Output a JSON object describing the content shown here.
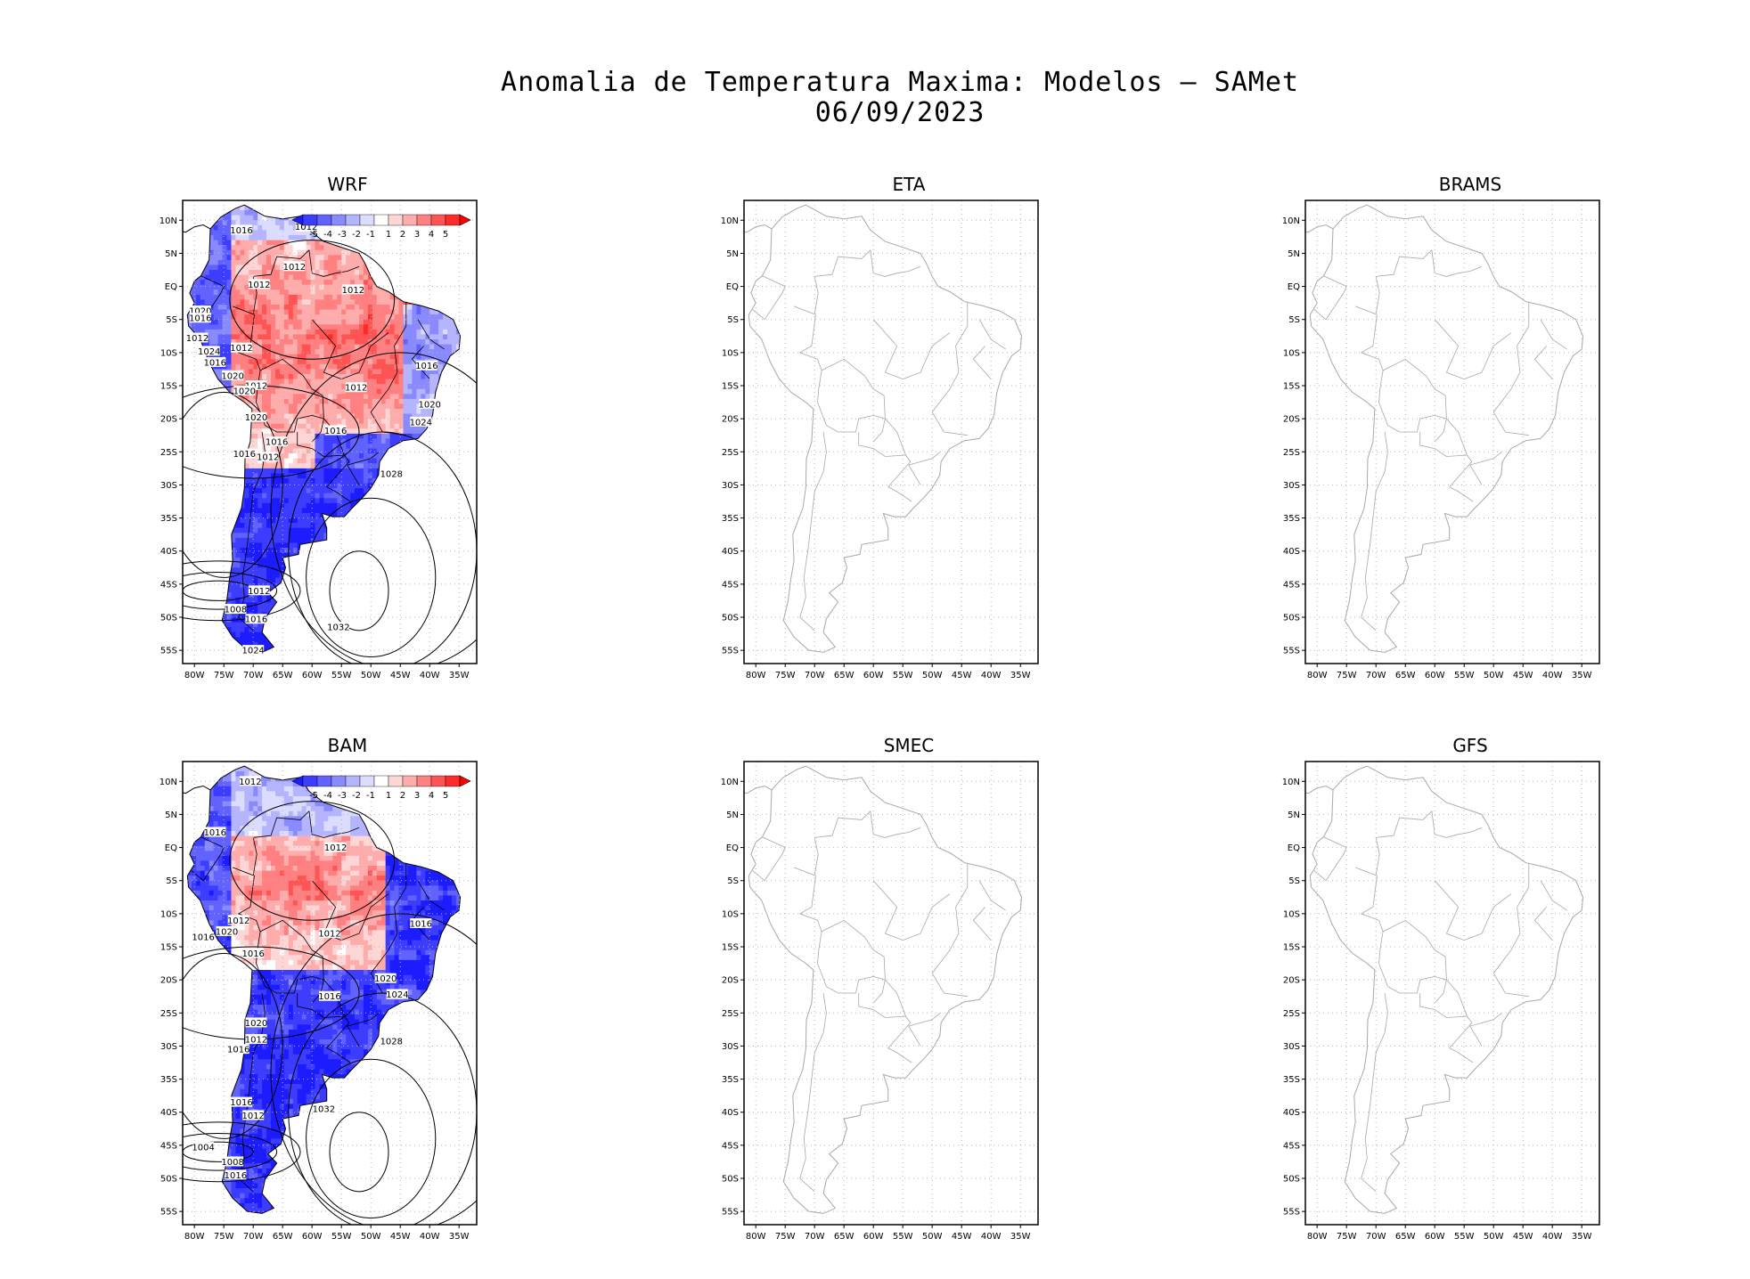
{
  "title": {
    "line1": "Anomalia de Temperatura Maxima: Modelos — SAMet",
    "line2": "06/09/2023"
  },
  "axes": {
    "lat_labels": [
      "10N",
      "5N",
      "EQ",
      "5S",
      "10S",
      "15S",
      "20S",
      "25S",
      "30S",
      "35S",
      "40S",
      "45S",
      "50S",
      "55S"
    ],
    "lon_labels": [
      "80W",
      "75W",
      "70W",
      "65W",
      "60W",
      "55W",
      "50W",
      "45W",
      "40W",
      "35W"
    ]
  },
  "colorbar": {
    "tick_labels": [
      "-5",
      "-4",
      "-3",
      "-2",
      "-1",
      "1",
      "2",
      "3",
      "4",
      "5"
    ],
    "colors": [
      "#1c1cff",
      "#3d3dff",
      "#6262ff",
      "#8a8aff",
      "#b4b4ff",
      "#dcdcff",
      "#ffffff",
      "#ffd6d6",
      "#ffacac",
      "#ff8080",
      "#ff5454",
      "#ff2a2a",
      "#ff0000"
    ]
  },
  "panels": [
    {
      "id": "wrf",
      "name": "WRF",
      "has_data": true,
      "pressure_labels": [
        {
          "t": "1016",
          "lat": 8.5,
          "lon": -72
        },
        {
          "t": "1012",
          "lat": 9,
          "lon": -61
        },
        {
          "t": "1012",
          "lat": 3,
          "lon": -63
        },
        {
          "t": "1012",
          "lat": 0.3,
          "lon": -69
        },
        {
          "t": "1012",
          "lat": -0.5,
          "lon": -53
        },
        {
          "t": "1020",
          "lat": -3.7,
          "lon": -79
        },
        {
          "t": "1016",
          "lat": -4.8,
          "lon": -79
        },
        {
          "t": "1012",
          "lat": -7.8,
          "lon": -79.5
        },
        {
          "t": "1012",
          "lat": -9.3,
          "lon": -72
        },
        {
          "t": "1024",
          "lat": -9.8,
          "lon": -77.5
        },
        {
          "t": "1016",
          "lat": -11.5,
          "lon": -76.5
        },
        {
          "t": "1016",
          "lat": -12,
          "lon": -40.5
        },
        {
          "t": "1020",
          "lat": -13.5,
          "lon": -73.5
        },
        {
          "t": "1012",
          "lat": -15,
          "lon": -69.5
        },
        {
          "t": "1012",
          "lat": -15.3,
          "lon": -52.5
        },
        {
          "t": "1020",
          "lat": -15.8,
          "lon": -71.5
        },
        {
          "t": "1020",
          "lat": -17.8,
          "lon": -40
        },
        {
          "t": "1020",
          "lat": -19.8,
          "lon": -69.5
        },
        {
          "t": "1024",
          "lat": -20.5,
          "lon": -41.5
        },
        {
          "t": "1016",
          "lat": -21.8,
          "lon": -56
        },
        {
          "t": "1016",
          "lat": -23.5,
          "lon": -66
        },
        {
          "t": "1016",
          "lat": -25.3,
          "lon": -71.5
        },
        {
          "t": "1012",
          "lat": -25.8,
          "lon": -67.5
        },
        {
          "t": "1028",
          "lat": -28.3,
          "lon": -46.5
        },
        {
          "t": "1012",
          "lat": -46,
          "lon": -69
        },
        {
          "t": "1008",
          "lat": -48.8,
          "lon": -73
        },
        {
          "t": "1016",
          "lat": -50.3,
          "lon": -69.5
        },
        {
          "t": "1032",
          "lat": -51.5,
          "lon": -55.5
        },
        {
          "t": "1024",
          "lat": -55,
          "lon": -70
        }
      ]
    },
    {
      "id": "eta",
      "name": "ETA",
      "has_data": false,
      "pressure_labels": []
    },
    {
      "id": "brams",
      "name": "BRAMS",
      "has_data": false,
      "pressure_labels": []
    },
    {
      "id": "bam",
      "name": "BAM",
      "has_data": true,
      "pressure_labels": [
        {
          "t": "1012",
          "lat": 10,
          "lon": -70.5
        },
        {
          "t": "1016",
          "lat": 2.3,
          "lon": -76.5
        },
        {
          "t": "1012",
          "lat": 0,
          "lon": -56
        },
        {
          "t": "1012",
          "lat": -11,
          "lon": -72.5
        },
        {
          "t": "1020",
          "lat": -12.7,
          "lon": -74.5
        },
        {
          "t": "1016",
          "lat": -13.5,
          "lon": -78.5
        },
        {
          "t": "1016",
          "lat": -11.5,
          "lon": -41.5
        },
        {
          "t": "1012",
          "lat": -13,
          "lon": -57
        },
        {
          "t": "1016",
          "lat": -16,
          "lon": -70
        },
        {
          "t": "1020",
          "lat": -19.8,
          "lon": -47.5
        },
        {
          "t": "1024",
          "lat": -22.2,
          "lon": -45.5
        },
        {
          "t": "1016",
          "lat": -22.5,
          "lon": -57
        },
        {
          "t": "1020",
          "lat": -26.5,
          "lon": -69.5
        },
        {
          "t": "1012",
          "lat": -29,
          "lon": -69.5
        },
        {
          "t": "1016",
          "lat": -30.5,
          "lon": -72.5
        },
        {
          "t": "1028",
          "lat": -29.3,
          "lon": -46.5
        },
        {
          "t": "1016",
          "lat": -38.5,
          "lon": -72
        },
        {
          "t": "1012",
          "lat": -40.5,
          "lon": -70
        },
        {
          "t": "1032",
          "lat": -39.5,
          "lon": -58
        },
        {
          "t": "1004",
          "lat": -45.3,
          "lon": -78.5
        },
        {
          "t": "1008",
          "lat": -47.5,
          "lon": -73.5
        },
        {
          "t": "1016",
          "lat": -49.5,
          "lon": -73
        }
      ]
    },
    {
      "id": "smec",
      "name": "SMEC",
      "has_data": false,
      "pressure_labels": []
    },
    {
      "id": "gfs",
      "name": "GFS",
      "has_data": false,
      "pressure_labels": []
    }
  ]
}
